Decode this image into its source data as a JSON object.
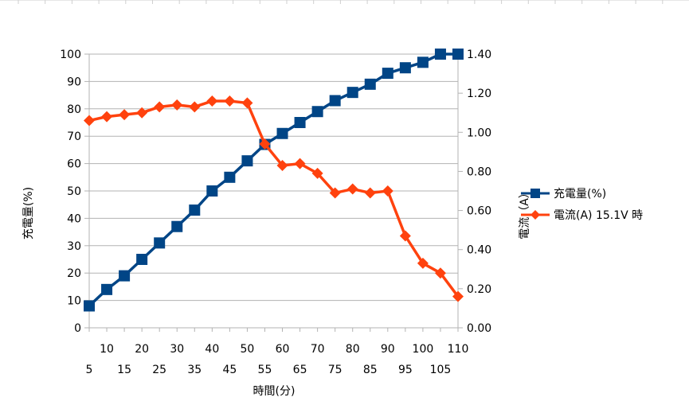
{
  "chart_data": {
    "type": "line",
    "x": [
      5,
      10,
      15,
      20,
      25,
      30,
      35,
      40,
      45,
      50,
      55,
      60,
      65,
      70,
      75,
      80,
      85,
      90,
      95,
      100,
      105,
      110
    ],
    "xlabel": "時間(分)",
    "ylabel_left": "充電量(%)",
    "ylabel_right": "電流（A）",
    "ylim_left": [
      0,
      100
    ],
    "ylim_right": [
      0,
      1.4
    ],
    "yticks_left": [
      "0",
      "10",
      "20",
      "30",
      "40",
      "50",
      "60",
      "70",
      "80",
      "90",
      "100"
    ],
    "yticks_right": [
      "0.00",
      "0.20",
      "0.40",
      "0.60",
      "0.80",
      "1.00",
      "1.20",
      "1.40"
    ],
    "xticks_upper": [
      "10",
      "20",
      "30",
      "40",
      "50",
      "60",
      "70",
      "80",
      "90",
      "100",
      "110"
    ],
    "xticks_lower": [
      "5",
      "15",
      "25",
      "35",
      "45",
      "55",
      "65",
      "75",
      "85",
      "95",
      "105"
    ],
    "grid": "horizontal",
    "legend_position": "right",
    "series": [
      {
        "name": "充電量(%)",
        "axis": "left",
        "color": "#004586",
        "marker": "square",
        "values": [
          8,
          14,
          19,
          25,
          31,
          37,
          43,
          50,
          55,
          61,
          67,
          71,
          75,
          79,
          83,
          86,
          89,
          93,
          95,
          97,
          100,
          100
        ]
      },
      {
        "name": "電流(A) 15.1V 時",
        "axis": "right",
        "color": "#ff420e",
        "marker": "diamond",
        "values": [
          1.06,
          1.08,
          1.09,
          1.1,
          1.13,
          1.14,
          1.13,
          1.16,
          1.16,
          1.15,
          0.94,
          0.83,
          0.84,
          0.79,
          0.69,
          0.71,
          0.69,
          0.7,
          0.47,
          0.33,
          0.28,
          0.16
        ]
      }
    ]
  }
}
